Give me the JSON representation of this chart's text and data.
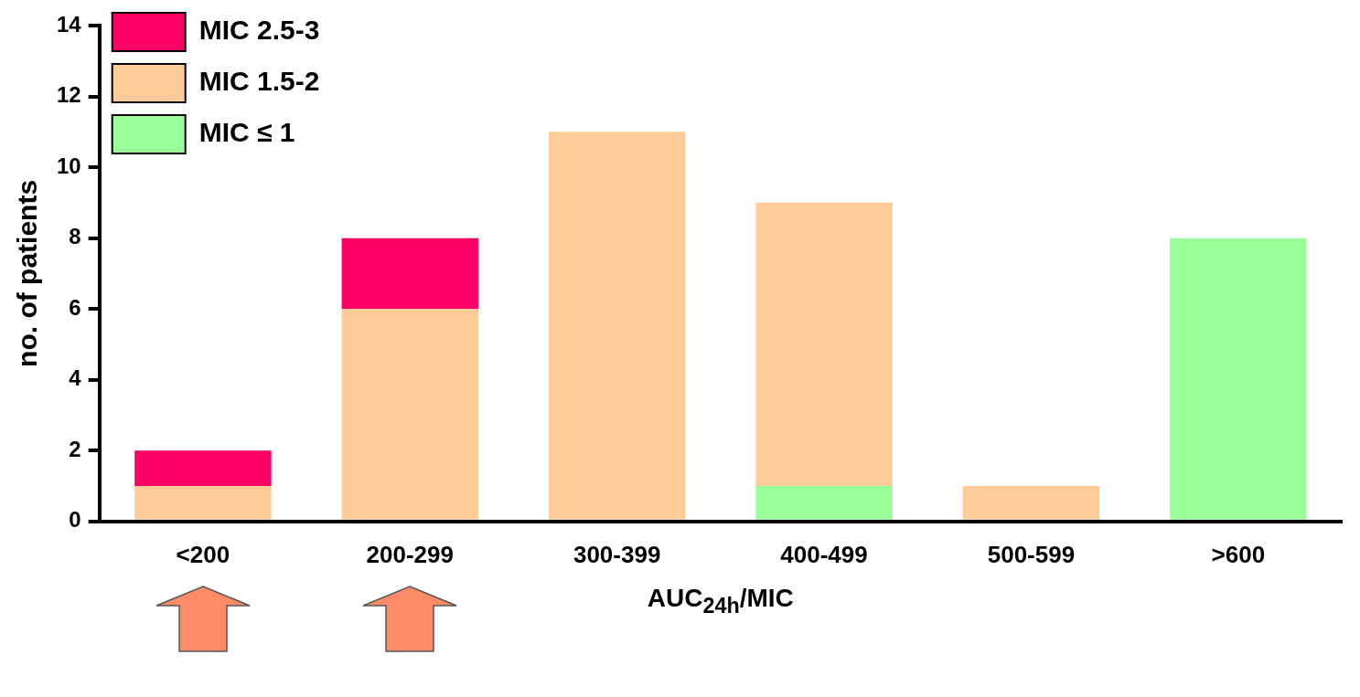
{
  "chart_data": {
    "type": "bar",
    "stacked": true,
    "xlabel": "AUC$_{24h}$/MIC",
    "ylabel": "no. of patients",
    "categories": [
      "<200",
      "200-299",
      "300-399",
      "400-499",
      "500-599",
      ">600"
    ],
    "series": [
      {
        "name": "MIC ≤ 1",
        "color": "#99ff99",
        "values": [
          0,
          0,
          0,
          1,
          0,
          8
        ]
      },
      {
        "name": "MIC 1.5-2",
        "color": "#ffcc99",
        "values": [
          1,
          6,
          11,
          8,
          1,
          0
        ]
      },
      {
        "name": "MIC 2.5-3",
        "color": "#ff0066",
        "values": [
          1,
          2,
          0,
          0,
          0,
          0
        ]
      }
    ],
    "ylim": [
      0,
      14
    ],
    "yticks": [
      0,
      2,
      4,
      6,
      8,
      10,
      12,
      14
    ],
    "grid": false,
    "legend": "top left"
  }
}
